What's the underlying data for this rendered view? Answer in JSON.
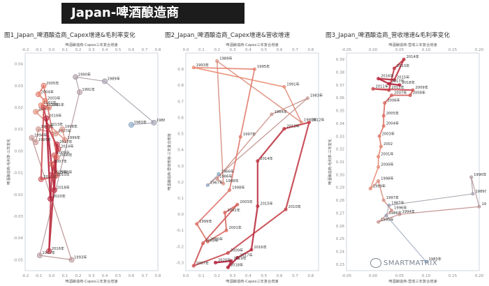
{
  "header": {
    "title": "Japan-啤酒酿造商"
  },
  "watermark": {
    "text": "SMARTMATRIX",
    "icon": "wechat-icon"
  },
  "colors": {
    "early": "#7c9fc0",
    "mid": "#e98a72",
    "late": "#b3203a"
  },
  "chart_data": [
    {
      "type": "scatter",
      "title": "图1_Japan_啤酒酿造商_Capex增速&毛利率变化",
      "xlabel": "啤酒酿造商-Capex三年复合增速",
      "ylabel": "啤酒酿造商-毛利率-三年变化",
      "xlim": [
        -0.2,
        0.8
      ],
      "ylim": [
        -0.055,
        0.045
      ],
      "xticks": [
        "-0.2",
        "-0.1",
        "0.0",
        "0.1",
        "0.2",
        "0.3",
        "0.4",
        "0.5",
        "0.6",
        "0.7",
        "0.8"
      ],
      "yticks": [
        "-0.05",
        "-0.04",
        "-0.03",
        "-0.02",
        "-0.01",
        "0.00",
        "0.01",
        "0.02",
        "0.03",
        "0.04"
      ],
      "points": [
        {
          "label": "1983年",
          "x": 0.6,
          "y": 0.012
        },
        {
          "label": "1988年",
          "x": 0.77,
          "y": 0.013
        },
        {
          "label": "1989年",
          "x": 0.4,
          "y": 0.032
        },
        {
          "label": "1990年",
          "x": 0.18,
          "y": 0.034
        },
        {
          "label": "1991年",
          "x": 0.21,
          "y": 0.027
        },
        {
          "label": "1992年",
          "x": -0.09,
          "y": -0.048
        },
        {
          "label": "1993年",
          "x": 0.15,
          "y": -0.05
        },
        {
          "label": "1994年",
          "x": -0.15,
          "y": 0.006
        },
        {
          "label": "1995年",
          "x": -0.12,
          "y": 0.004
        },
        {
          "label": "1996年",
          "x": -0.1,
          "y": 0.01
        },
        {
          "label": "1997年",
          "x": 0.03,
          "y": 0.008
        },
        {
          "label": "1998年",
          "x": 0.08,
          "y": 0.01
        },
        {
          "label": "1999年",
          "x": 0.1,
          "y": 0.005
        },
        {
          "label": "2000年",
          "x": -0.12,
          "y": 0.018
        },
        {
          "label": "2001年",
          "x": -0.02,
          "y": 0.02
        },
        {
          "label": "2002年",
          "x": -0.08,
          "y": 0.021
        },
        {
          "label": "2003年",
          "x": -0.05,
          "y": 0.023
        },
        {
          "label": "2004年",
          "x": -0.1,
          "y": 0.026
        },
        {
          "label": "2005年",
          "x": -0.06,
          "y": 0.03
        },
        {
          "label": "2006年",
          "x": 0.04,
          "y": -0.003
        },
        {
          "label": "2007年",
          "x": 0.0,
          "y": -0.006
        },
        {
          "label": "2008年",
          "x": 0.04,
          "y": -0.011
        },
        {
          "label": "2009年",
          "x": 0.02,
          "y": -0.002
        },
        {
          "label": "2010年",
          "x": 0.02,
          "y": -0.012
        },
        {
          "label": "2011年",
          "x": -0.08,
          "y": -0.013
        },
        {
          "label": "2012年",
          "x": -0.06,
          "y": 0.02
        },
        {
          "label": "2013年",
          "x": -0.03,
          "y": 0.011
        },
        {
          "label": "2014年",
          "x": 0.05,
          "y": 0.001
        },
        {
          "label": "2015年",
          "x": 0.0,
          "y": -0.011
        },
        {
          "label": "2016年",
          "x": -0.02,
          "y": -0.046
        },
        {
          "label": "2017年",
          "x": 0.04,
          "y": 0.003
        },
        {
          "label": "2018年",
          "x": 0.02,
          "y": -0.018
        },
        {
          "label": "2019年",
          "x": -0.04,
          "y": 0.015
        },
        {
          "label": "2020年",
          "x": -0.01,
          "y": -0.022
        }
      ]
    },
    {
      "type": "scatter",
      "title": "图2_Japan_啤酒酿造商_Capex增速&营收增速",
      "xlabel": "啤酒酿造商-Capex三年复合增速",
      "ylabel": "啤酒酿造商-营收增速-三年复合增速",
      "xlim": [
        0.0,
        0.85
      ],
      "ylim": [
        -0.35,
        1.0
      ],
      "xticks": [
        "0.0",
        "0.1",
        "0.2",
        "0.3",
        "0.4",
        "0.5",
        "0.6",
        "0.7",
        "0.8"
      ],
      "yticks": [
        "-0.3",
        "-0.2",
        "-0.1",
        "0.0",
        "0.1",
        "0.2",
        "0.3",
        "0.4",
        "0.5",
        "0.6",
        "0.7",
        "0.8",
        "0.9"
      ],
      "points": [
        {
          "label": "1983年",
          "x": 0.78,
          "y": 0.72
        },
        {
          "label": "1984年",
          "x": 0.55,
          "y": 0.62
        },
        {
          "label": "1989年",
          "x": 0.2,
          "y": 0.95
        },
        {
          "label": "1990年",
          "x": 0.74,
          "y": 0.57
        },
        {
          "label": "1991年",
          "x": 0.63,
          "y": 0.79
        },
        {
          "label": "1993年",
          "x": 0.05,
          "y": 0.91
        },
        {
          "label": "1995年",
          "x": 0.44,
          "y": 0.9
        },
        {
          "label": "1997年",
          "x": 0.35,
          "y": 0.48
        },
        {
          "label": "1998年",
          "x": 0.28,
          "y": 0.15
        },
        {
          "label": "1999年",
          "x": 0.07,
          "y": -0.06
        },
        {
          "label": "2000年",
          "x": 0.14,
          "y": -0.17
        },
        {
          "label": "2001年",
          "x": 0.26,
          "y": -0.1
        },
        {
          "label": "2002年",
          "x": 0.25,
          "y": 0.01
        },
        {
          "label": "2003年",
          "x": 0.33,
          "y": 0.06
        },
        {
          "label": "2005年",
          "x": 0.11,
          "y": -0.18
        },
        {
          "label": "2007年",
          "x": 0.05,
          "y": -0.32
        },
        {
          "label": "2009年",
          "x": 0.27,
          "y": -0.24
        },
        {
          "label": "2010年",
          "x": 0.64,
          "y": 0.03
        },
        {
          "label": "2012年",
          "x": 0.79,
          "y": 0.57
        },
        {
          "label": "2013年",
          "x": 0.63,
          "y": 0.53
        },
        {
          "label": "2014年",
          "x": 0.46,
          "y": 0.33
        },
        {
          "label": "2015年",
          "x": 0.46,
          "y": 0.05
        },
        {
          "label": "2016年",
          "x": 0.42,
          "y": -0.22
        },
        {
          "label": "2017年",
          "x": 0.33,
          "y": -0.27
        },
        {
          "label": "2018年",
          "x": 0.27,
          "y": -0.33
        },
        {
          "label": "2019年",
          "x": 0.29,
          "y": -0.29
        },
        {
          "label": "2020年",
          "x": 0.19,
          "y": -0.3
        },
        {
          "label": "1966年",
          "x": 0.21,
          "y": 0.25
        },
        {
          "label": "1967年",
          "x": 0.14,
          "y": 0.18
        },
        {
          "label": "1988年",
          "x": 0.24,
          "y": 0.19
        },
        {
          "label": "1986年",
          "x": 0.2,
          "y": 0.22
        }
      ]
    },
    {
      "type": "scatter",
      "title": "图3_Japan_啤酒酿造商_营收增速&毛利率变化",
      "xlabel": "啤酒酿造商-营收三年复合增速",
      "ylabel": "啤酒酿造商-毛利率-三年变化",
      "xlim": [
        -0.05,
        0.2
      ],
      "ylim": [
        0.225,
        0.395
      ],
      "xticks": [
        "-0.05",
        "0.00",
        "0.05",
        "0.10",
        "0.15",
        "0.20"
      ],
      "yticks": [
        "0.23",
        "0.24",
        "0.25",
        "0.26",
        "0.27",
        "0.28",
        "0.29",
        "0.30",
        "0.31",
        "0.32",
        "0.33",
        "0.34",
        "0.35",
        "0.36",
        "0.37",
        "0.38",
        "0.39"
      ],
      "points": [
        {
          "label": "1983年",
          "x": 0.1,
          "y": 0.232
        },
        {
          "label": "1986年",
          "x": 0.025,
          "y": 0.268
        },
        {
          "label": "1987年",
          "x": 0.03,
          "y": 0.276
        },
        {
          "label": "1989年",
          "x": 0.188,
          "y": 0.285
        },
        {
          "label": "1990年",
          "x": 0.185,
          "y": 0.298
        },
        {
          "label": "1992年",
          "x": 0.2,
          "y": 0.275
        },
        {
          "label": "1994年",
          "x": 0.05,
          "y": 0.269
        },
        {
          "label": "1995年",
          "x": 0.01,
          "y": 0.263
        },
        {
          "label": "1996年",
          "x": 0.035,
          "y": 0.272
        },
        {
          "label": "1997年",
          "x": 0.02,
          "y": 0.28
        },
        {
          "label": "1998年",
          "x": 0.01,
          "y": 0.295
        },
        {
          "label": "1999年",
          "x": -0.005,
          "y": 0.289
        },
        {
          "label": "2000年",
          "x": 0.01,
          "y": 0.306
        },
        {
          "label": "2001年",
          "x": 0.01,
          "y": 0.314
        },
        {
          "label": "2002",
          "x": 0.015,
          "y": 0.322
        },
        {
          "label": "2003年",
          "x": 0.012,
          "y": 0.33
        },
        {
          "label": "2004年",
          "x": 0.02,
          "y": 0.338
        },
        {
          "label": "2005年",
          "x": 0.02,
          "y": 0.346
        },
        {
          "label": "2006年",
          "x": 0.022,
          "y": 0.356
        },
        {
          "label": "2007年",
          "x": 0.035,
          "y": 0.362
        },
        {
          "label": "2008年",
          "x": 0.07,
          "y": 0.362
        },
        {
          "label": "2009年",
          "x": 0.075,
          "y": 0.366
        },
        {
          "label": "2011年",
          "x": 0.0,
          "y": 0.367
        },
        {
          "label": "2012年",
          "x": 0.03,
          "y": 0.366
        },
        {
          "label": "2013年",
          "x": 0.04,
          "y": 0.383
        },
        {
          "label": "2014年",
          "x": 0.058,
          "y": 0.39
        },
        {
          "label": "2015年",
          "x": 0.04,
          "y": 0.374
        },
        {
          "label": "2016年",
          "x": 0.01,
          "y": 0.375
        },
        {
          "label": "2017年",
          "x": 0.03,
          "y": 0.371
        },
        {
          "label": "2018年",
          "x": 0.05,
          "y": 0.37
        }
      ]
    }
  ]
}
